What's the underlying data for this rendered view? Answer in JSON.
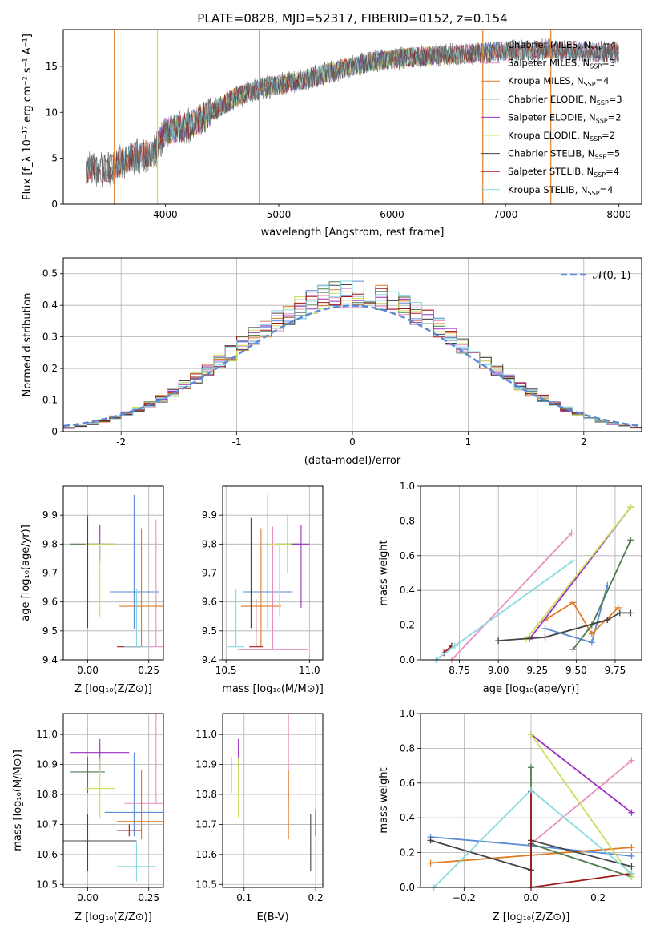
{
  "figure_title": "PLATE=0828, MJD=52317, FIBERID=0152, z=0.154",
  "colors": {
    "blue": "#5b8ad6",
    "pink": "#e98fbf",
    "orange": "#e07b25",
    "green": "#4f7a52",
    "purple": "#9b2fc4",
    "yellowgreen": "#c9e05a",
    "darkgray": "#444444",
    "darkred": "#a01818",
    "cyan": "#86d8e0",
    "gray": "#666666"
  },
  "chart_data": [
    {
      "id": "spectrum",
      "type": "line",
      "title": "PLATE=0828, MJD=52317, FIBERID=0152, z=0.154",
      "xlabel": "wavelength [Angstrom, rest frame]",
      "ylabel": "Flux [f_λ 10⁻¹⁷ erg cm⁻² s⁻¹ A⁻¹]",
      "xlim": [
        3100,
        8200
      ],
      "ylim": [
        0,
        19
      ],
      "xticks": [
        4000,
        5000,
        6000,
        7000,
        8000
      ],
      "yticks": [
        0,
        5,
        10,
        15
      ],
      "grid": false,
      "legend_position": "top-right",
      "observed_continuum": {
        "x": [
          3300,
          3500,
          3700,
          3900,
          4000,
          4200,
          4400,
          4600,
          4800,
          5000,
          5200,
          5400,
          5600,
          5800,
          6000,
          6200,
          6400,
          6600,
          6800,
          7000,
          7200,
          7400,
          7600,
          7800,
          8000
        ],
        "y": [
          3.8,
          3.8,
          5.2,
          5.5,
          8.0,
          8.5,
          10.0,
          11.5,
          12.5,
          13.0,
          13.5,
          14.2,
          14.8,
          15.5,
          15.8,
          16.0,
          16.2,
          16.3,
          16.5,
          16.7,
          16.7,
          16.8,
          16.6,
          16.5,
          16.5
        ]
      },
      "series": [
        {
          "name": "Chabrier MILES, N_SSP=4",
          "legend_text": "Chabrier MILES, N",
          "ssp": "4",
          "color": "#5b8ad6",
          "x": [
            3550,
            8000
          ]
        },
        {
          "name": "Salpeter MILES, N_SSP=3",
          "legend_text": "Salpeter MILES, N",
          "ssp": "3",
          "color": "#e98fbf",
          "x": [
            3550,
            8000
          ]
        },
        {
          "name": "Kroupa MILES, N_SSP=4",
          "legend_text": "Kroupa MILES, N",
          "ssp": "4",
          "color": "#e07b25",
          "x": [
            3550,
            7400
          ]
        },
        {
          "name": "Chabrier ELODIE, N_SSP=3",
          "legend_text": "Chabrier ELODIE, N",
          "ssp": "3",
          "color": "#4f7a52",
          "x": [
            3900,
            6800
          ]
        },
        {
          "name": "Salpeter ELODIE, N_SSP=2",
          "legend_text": "Salpeter ELODIE, N",
          "ssp": "2",
          "color": "#9b2fc4",
          "x": [
            3900,
            6800
          ]
        },
        {
          "name": "Kroupa ELODIE, N_SSP=2",
          "legend_text": "Kroupa ELODIE, N",
          "ssp": "2",
          "color": "#c9e05a",
          "x": [
            3900,
            6800
          ]
        },
        {
          "name": "Chabrier STELIB, N_SSP=5",
          "legend_text": "Chabrier STELIB, N",
          "ssp": "5",
          "color": "#444444",
          "x": [
            3300,
            8000
          ]
        },
        {
          "name": "Salpeter STELIB, N_SSP=4",
          "legend_text": "Salpeter STELIB, N",
          "ssp": "4",
          "color": "#a01818",
          "x": [
            3300,
            8000
          ]
        },
        {
          "name": "Kroupa STELIB, N_SSP=4",
          "legend_text": "Kroupa STELIB, N",
          "ssp": "4",
          "color": "#86d8e0",
          "x": [
            3300,
            8000
          ]
        }
      ]
    },
    {
      "id": "residuals",
      "type": "line",
      "xlabel": "(data-model)/error",
      "ylabel": "Normed distribution",
      "xlim": [
        -2.5,
        2.5
      ],
      "ylim": [
        0,
        0.55
      ],
      "xticks": [
        -2,
        -1,
        0,
        1,
        2
      ],
      "yticks": [
        0.0,
        0.1,
        0.2,
        0.3,
        0.4,
        0.5
      ],
      "grid": true,
      "legend_position": "top-right",
      "legend": "𝒩(0, 1)",
      "bin_width": 0.1
    },
    {
      "id": "age-vs-Z",
      "type": "scatter",
      "xlabel": "Z [log₁₀(Z/Z⊙)]",
      "ylabel": "age  [log₁₀(age/yr)]",
      "xlim": [
        -0.1,
        0.31
      ],
      "ylim": [
        9.4,
        10.0
      ],
      "xticks": [
        "0.00",
        "0.25"
      ],
      "yticks": [
        "9.4",
        "9.5",
        "9.6",
        "9.7",
        "9.8",
        "9.9"
      ],
      "grid": true,
      "points": [
        {
          "c": "blue",
          "x": 0.19,
          "y": 9.635,
          "xerr": 0.1,
          "yerr": [
            0.13,
            0.335
          ]
        },
        {
          "c": "pink",
          "x": 0.28,
          "y": 9.445,
          "xerr": 0.12,
          "yerr": [
            0.0,
            0.44
          ]
        },
        {
          "c": "orange",
          "x": 0.22,
          "y": 9.585,
          "xerr": 0.09,
          "yerr": [
            0.14,
            0.27
          ]
        },
        {
          "c": "green",
          "x": 0.0,
          "y": 9.8,
          "xerr": 0.07,
          "yerr": [
            0.1,
            0.1
          ]
        },
        {
          "c": "purple",
          "x": 0.05,
          "y": 9.8,
          "xerr": 0.06,
          "yerr": [
            0.06,
            0.065
          ]
        },
        {
          "c": "yellowgreen",
          "x": 0.05,
          "y": 9.8,
          "xerr": 0.06,
          "yerr": [
            0.25,
            0.0
          ]
        },
        {
          "c": "darkgray",
          "x": 0.0,
          "y": 9.7,
          "xerr": 0.2,
          "yerr": [
            0.19,
            0.19
          ]
        },
        {
          "c": "darkred",
          "x": 0.17,
          "y": 9.445,
          "xerr": 0.05,
          "yerr": [
            0.0,
            0.0
          ]
        },
        {
          "c": "cyan",
          "x": 0.2,
          "y": 9.445,
          "xerr": 0.05,
          "yerr": [
            0.0,
            0.2
          ]
        }
      ]
    },
    {
      "id": "age-vs-mass",
      "type": "scatter",
      "xlabel": "mass [log₁₀(M/M⊙)]",
      "ylabel": "",
      "xlim": [
        10.48,
        11.08
      ],
      "ylim": [
        9.4,
        10.0
      ],
      "xticks": [
        "10.5",
        "11.0"
      ],
      "yticks": [
        "9.4",
        "9.5",
        "9.6",
        "9.7",
        "9.8",
        "9.9"
      ],
      "grid": true,
      "points": [
        {
          "c": "blue",
          "x": 10.75,
          "y": 9.635,
          "xerr": 0.15,
          "yerr": [
            0.13,
            0.335
          ]
        },
        {
          "c": "pink",
          "x": 10.78,
          "y": 9.435,
          "xerr": 0.21,
          "yerr": [
            0.0,
            0.425
          ]
        },
        {
          "c": "orange",
          "x": 10.71,
          "y": 9.585,
          "xerr": 0.12,
          "yerr": [
            0.14,
            0.27
          ]
        },
        {
          "c": "green",
          "x": 10.87,
          "y": 9.8,
          "xerr": 0.07,
          "yerr": [
            0.1,
            0.1
          ]
        },
        {
          "c": "purple",
          "x": 10.95,
          "y": 9.8,
          "xerr": 0.05,
          "yerr": [
            0.22,
            0.065
          ]
        },
        {
          "c": "yellowgreen",
          "x": 10.82,
          "y": 9.8,
          "xerr": 0.07,
          "yerr": [
            0.25,
            0.0
          ]
        },
        {
          "c": "darkgray",
          "x": 10.65,
          "y": 9.7,
          "xerr": 0.08,
          "yerr": [
            0.19,
            0.19
          ]
        },
        {
          "c": "darkred",
          "x": 10.68,
          "y": 9.445,
          "xerr": 0.04,
          "yerr": [
            0.0,
            0.165
          ]
        },
        {
          "c": "cyan",
          "x": 10.56,
          "y": 9.445,
          "xerr": 0.05,
          "yerr": [
            0.0,
            0.2
          ]
        }
      ]
    },
    {
      "id": "weight-vs-age",
      "type": "line",
      "xlabel": "age  [log₁₀(age/yr)]",
      "ylabel": "mass weight",
      "xlim": [
        8.5,
        9.92
      ],
      "ylim": [
        0,
        1.0
      ],
      "xticks": [
        "8.75",
        "9.00",
        "9.25",
        "9.50",
        "9.75"
      ],
      "yticks": [
        "0.0",
        "0.2",
        "0.4",
        "0.6",
        "0.8",
        "1.0"
      ],
      "grid": true,
      "series": [
        {
          "c": "blue",
          "points": [
            [
              9.3,
              0.18
            ],
            [
              9.6,
              0.1
            ],
            [
              9.7,
              0.43
            ]
          ]
        },
        {
          "c": "pink",
          "points": [
            [
              8.7,
              0.0
            ],
            [
              9.47,
              0.73
            ]
          ]
        },
        {
          "c": "orange",
          "points": [
            [
              9.3,
              0.23
            ],
            [
              9.48,
              0.33
            ],
            [
              9.6,
              0.15
            ],
            [
              9.77,
              0.3
            ]
          ]
        },
        {
          "c": "green",
          "points": [
            [
              9.48,
              0.06
            ],
            [
              9.6,
              0.2
            ],
            [
              9.85,
              0.69
            ]
          ]
        },
        {
          "c": "purple",
          "points": [
            [
              9.2,
              0.12
            ],
            [
              9.85,
              0.88
            ]
          ]
        },
        {
          "c": "yellowgreen",
          "points": [
            [
              9.18,
              0.12
            ],
            [
              9.85,
              0.88
            ]
          ]
        },
        {
          "c": "darkgray",
          "points": [
            [
              9.0,
              0.11
            ],
            [
              9.3,
              0.13
            ],
            [
              9.7,
              0.23
            ],
            [
              9.78,
              0.27
            ],
            [
              9.85,
              0.27
            ]
          ]
        },
        {
          "c": "darkred",
          "points": [
            [
              8.65,
              0.04
            ],
            [
              8.7,
              0.08
            ]
          ]
        },
        {
          "c": "cyan",
          "points": [
            [
              8.6,
              0.0
            ],
            [
              8.72,
              0.08
            ],
            [
              9.48,
              0.57
            ]
          ]
        }
      ]
    },
    {
      "id": "mass-vs-Z",
      "type": "scatter",
      "xlabel": "Z [log₁₀(Z/Z⊙)]",
      "ylabel": "mass [log₁₀(M/M⊙)]",
      "xlim": [
        -0.1,
        0.31
      ],
      "ylim": [
        10.49,
        11.07
      ],
      "xticks": [
        "0.00",
        "0.25"
      ],
      "yticks": [
        "10.5",
        "10.6",
        "10.7",
        "10.8",
        "10.9",
        "11.0"
      ],
      "grid": true,
      "points": [
        {
          "c": "blue",
          "x": 0.19,
          "y": 10.74,
          "xerr": 0.12,
          "yerr": [
            0.08,
            0.2
          ]
        },
        {
          "c": "pink",
          "x": 0.28,
          "y": 10.77,
          "xerr": 0.13,
          "yerr": [
            0.0,
            0.37
          ]
        },
        {
          "c": "orange",
          "x": 0.22,
          "y": 10.71,
          "xerr": 0.1,
          "yerr": [
            0.06,
            0.17
          ]
        },
        {
          "c": "green",
          "x": 0.0,
          "y": 10.875,
          "xerr": 0.07,
          "yerr": [
            0.07,
            0.05
          ]
        },
        {
          "c": "purple",
          "x": 0.05,
          "y": 10.94,
          "xerr": 0.12,
          "yerr": [
            0.06,
            0.045
          ]
        },
        {
          "c": "yellowgreen",
          "x": 0.05,
          "y": 10.82,
          "xerr": 0.06,
          "yerr": [
            0.1,
            0.1
          ]
        },
        {
          "c": "darkgray",
          "x": 0.0,
          "y": 10.645,
          "xerr": 0.2,
          "yerr": [
            0.1,
            0.09
          ]
        },
        {
          "c": "darkred",
          "x": 0.17,
          "y": 10.68,
          "xerr": 0.05,
          "yerr": [
            0.02,
            0.02
          ]
        },
        {
          "c": "cyan",
          "x": 0.2,
          "y": 10.56,
          "xerr": 0.08,
          "yerr": [
            0.05,
            0.08
          ]
        }
      ]
    },
    {
      "id": "mass-vs-EBV",
      "type": "scatter",
      "xlabel": "E(B-V)",
      "ylabel": "",
      "xlim": [
        0.07,
        0.21
      ],
      "ylim": [
        10.49,
        11.07
      ],
      "xticks": [
        "0.1",
        "0.2"
      ],
      "yticks": [
        "10.5",
        "10.6",
        "10.7",
        "10.8",
        "10.9",
        "11.0"
      ],
      "grid": true,
      "points": [
        {
          "c": "pink",
          "x": 0.162,
          "y": 10.77,
          "yerr": [
            0.0,
            0.37
          ]
        },
        {
          "c": "orange",
          "x": 0.162,
          "y": 10.71,
          "yerr": [
            0.06,
            0.17
          ]
        },
        {
          "c": "green",
          "x": 0.082,
          "y": 10.875,
          "yerr": [
            0.07,
            0.05
          ]
        },
        {
          "c": "purple",
          "x": 0.092,
          "y": 10.94,
          "yerr": [
            0.06,
            0.045
          ]
        },
        {
          "c": "yellowgreen",
          "x": 0.092,
          "y": 10.82,
          "yerr": [
            0.1,
            0.1
          ]
        },
        {
          "c": "darkgray",
          "x": 0.193,
          "y": 10.645,
          "yerr": [
            0.1,
            0.09
          ]
        },
        {
          "c": "darkred",
          "x": 0.2,
          "y": 10.68,
          "yerr": [
            0.02,
            0.07
          ]
        },
        {
          "c": "cyan",
          "x": 0.2,
          "y": 10.56,
          "yerr": [
            0.05,
            0.08
          ]
        }
      ]
    },
    {
      "id": "weight-vs-Z",
      "type": "line",
      "xlabel": "Z [log₁₀(Z/Z⊙)]",
      "ylabel": "mass weight",
      "xlim": [
        -0.33,
        0.33
      ],
      "ylim": [
        0,
        1.0
      ],
      "xticks": [
        "−0.2",
        "0.0",
        "0.2"
      ],
      "yticks": [
        "0.0",
        "0.2",
        "0.4",
        "0.6",
        "0.8",
        "1.0"
      ],
      "grid": true,
      "series": [
        {
          "c": "blue",
          "points": [
            [
              -0.3,
              0.29
            ],
            [
              0.0,
              0.24
            ],
            [
              0.3,
              0.18
            ]
          ]
        },
        {
          "c": "pink",
          "points": [
            [
              0.0,
              0.25
            ],
            [
              0.3,
              0.73
            ]
          ]
        },
        {
          "c": "orange",
          "points": [
            [
              -0.3,
              0.14
            ],
            [
              0.3,
              0.23
            ]
          ]
        },
        {
          "c": "green",
          "points": [
            [
              0.0,
              0.69
            ],
            [
              0.0,
              0.25
            ],
            [
              0.3,
              0.06
            ]
          ]
        },
        {
          "c": "purple",
          "points": [
            [
              0.0,
              0.88
            ],
            [
              0.3,
              0.43
            ]
          ]
        },
        {
          "c": "yellowgreen",
          "points": [
            [
              0.0,
              0.88
            ],
            [
              0.3,
              0.06
            ]
          ]
        },
        {
          "c": "darkgray",
          "points": [
            [
              -0.3,
              0.27
            ],
            [
              0.0,
              0.1
            ],
            [
              0.0,
              0.27
            ],
            [
              0.3,
              0.12
            ]
          ]
        },
        {
          "c": "darkred",
          "points": [
            [
              0.0,
              0.55
            ],
            [
              0.0,
              0.0
            ],
            [
              0.3,
              0.08
            ]
          ]
        },
        {
          "c": "cyan",
          "points": [
            [
              -0.29,
              0.0
            ],
            [
              0.0,
              0.56
            ],
            [
              0.3,
              0.08
            ]
          ]
        }
      ]
    }
  ]
}
